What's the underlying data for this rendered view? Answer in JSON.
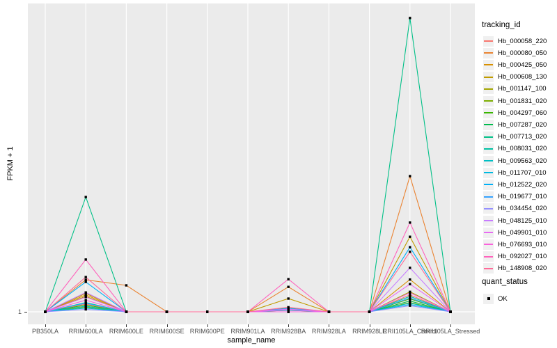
{
  "figure": {
    "y_axis_title": "FPKM + 1",
    "x_axis_title": "sample_name",
    "y_tick_label": "1",
    "panel_background": "#EBEBEB",
    "gridline_color": "#FFFFFF",
    "tick_mark_color": "#333333",
    "tick_label_color": "#4D4D4D",
    "point_color": "#000000"
  },
  "legend": {
    "tracking_title": "tracking_id",
    "quant_title": "quant_status",
    "quant_items": [
      {
        "label": "OK",
        "shape": "filled-square",
        "color": "#000000"
      }
    ],
    "key_background": "#F0F0F0",
    "position": "right"
  },
  "chart_data": {
    "type": "line",
    "title": "",
    "xlabel": "sample_name",
    "ylabel": "FPKM + 1",
    "legend_position": "right",
    "grid": "ggplot-style: grey panel, white gridlines at each x category and at y=1",
    "point_shape": "small filled black square at every sample (quant_status = OK)",
    "x_categories": [
      "PB350LA",
      "RRIM600LA",
      "RRIM600LE",
      "RRIM600SE",
      "RRIM600PE",
      "RRIM901LA",
      "RRIM928BA",
      "RRIM928LA",
      "RRIM928LE",
      "RRII105LA_Control",
      "RRII105LA_Stressed"
    ],
    "y_axis": {
      "labeled_ticks": [
        1
      ],
      "note": "Only the value 1 is labeled on the y axis; series values are stored as approximate peak heights expressed as a fraction of the panel height above the y=1 baseline (0 = FPKM+1 of 1, 1 = top of panel)."
    },
    "series": [
      {
        "name": "Hb_000058_220",
        "color": "#F8766D",
        "values_frac": [
          0,
          0.025,
          0,
          0,
          0,
          0,
          0.005,
          0,
          0,
          0.055,
          0
        ]
      },
      {
        "name": "Hb_000080_050",
        "color": "#EA8331",
        "values_frac": [
          0,
          0.104,
          0.086,
          0,
          0,
          0,
          0.081,
          0,
          0,
          0.441,
          0
        ]
      },
      {
        "name": "Hb_000425_050",
        "color": "#D89000",
        "values_frac": [
          0,
          0.055,
          0,
          0,
          0,
          0,
          0.012,
          0,
          0,
          0.105,
          0
        ]
      },
      {
        "name": "Hb_000608_130",
        "color": "#C09B00",
        "values_frac": [
          0,
          0.06,
          0,
          0,
          0,
          0,
          0.043,
          0,
          0,
          0.244,
          0
        ]
      },
      {
        "name": "Hb_001147_100",
        "color": "#A3A500",
        "values_frac": [
          0,
          0.05,
          0,
          0,
          0,
          0,
          0.008,
          0,
          0,
          0.065,
          0
        ]
      },
      {
        "name": "Hb_001831_020",
        "color": "#7CAE00",
        "values_frac": [
          0,
          0.015,
          0,
          0,
          0,
          0,
          0,
          0,
          0,
          0.03,
          0
        ]
      },
      {
        "name": "Hb_004297_060",
        "color": "#39B600",
        "values_frac": [
          0,
          0.022,
          0,
          0,
          0,
          0,
          0,
          0,
          0,
          0.042,
          0
        ]
      },
      {
        "name": "Hb_007287_020",
        "color": "#00BB4E",
        "values_frac": [
          0,
          0.018,
          0,
          0,
          0,
          0,
          0,
          0,
          0,
          0.035,
          0
        ]
      },
      {
        "name": "Hb_007713_020",
        "color": "#00C087",
        "values_frac": [
          0,
          0.373,
          0,
          0,
          0,
          0,
          0.005,
          0,
          0,
          0.955,
          0
        ]
      },
      {
        "name": "Hb_008031_020",
        "color": "#00C1A3",
        "values_frac": [
          0,
          0.03,
          0,
          0,
          0,
          0,
          0,
          0,
          0,
          0.05,
          0
        ]
      },
      {
        "name": "Hb_009563_020",
        "color": "#00BFC4",
        "values_frac": [
          0,
          0.018,
          0,
          0,
          0,
          0,
          0,
          0,
          0,
          0.028,
          0
        ]
      },
      {
        "name": "Hb_011707_010",
        "color": "#00BAE0",
        "values_frac": [
          0,
          0.012,
          0,
          0,
          0,
          0,
          0,
          0,
          0,
          0.024,
          0
        ]
      },
      {
        "name": "Hb_012522_020",
        "color": "#00B0F6",
        "values_frac": [
          0,
          0.097,
          0,
          0,
          0,
          0,
          0.011,
          0,
          0,
          0.21,
          0
        ]
      },
      {
        "name": "Hb_019677_010",
        "color": "#35A2FF",
        "values_frac": [
          0,
          0.028,
          0,
          0,
          0,
          0,
          0.006,
          0,
          0,
          0.045,
          0
        ]
      },
      {
        "name": "Hb_034454_020",
        "color": "#9590FF",
        "values_frac": [
          0,
          0.008,
          0,
          0,
          0,
          0,
          0,
          0,
          0,
          0.02,
          0
        ]
      },
      {
        "name": "Hb_048125_010",
        "color": "#C77CFF",
        "values_frac": [
          0,
          0.063,
          0,
          0,
          0,
          0,
          0.009,
          0,
          0,
          0.143,
          0
        ]
      },
      {
        "name": "Hb_049901_010",
        "color": "#E76BF3",
        "values_frac": [
          0,
          0.048,
          0,
          0,
          0,
          0,
          0.007,
          0,
          0,
          0.09,
          0
        ]
      },
      {
        "name": "Hb_076693_010",
        "color": "#FA62DB",
        "values_frac": [
          0,
          0.038,
          0,
          0,
          0,
          0,
          0,
          0,
          0,
          0.062,
          0
        ]
      },
      {
        "name": "Hb_092027_010",
        "color": "#FF62BC",
        "values_frac": [
          0,
          0.17,
          0,
          0,
          0,
          0,
          0.106,
          0,
          0,
          0.29,
          0
        ]
      },
      {
        "name": "Hb_148908_020",
        "color": "#FF6A98",
        "values_frac": [
          0,
          0.113,
          0,
          0,
          0,
          0,
          0.015,
          0,
          0,
          0.195,
          0
        ]
      }
    ]
  }
}
